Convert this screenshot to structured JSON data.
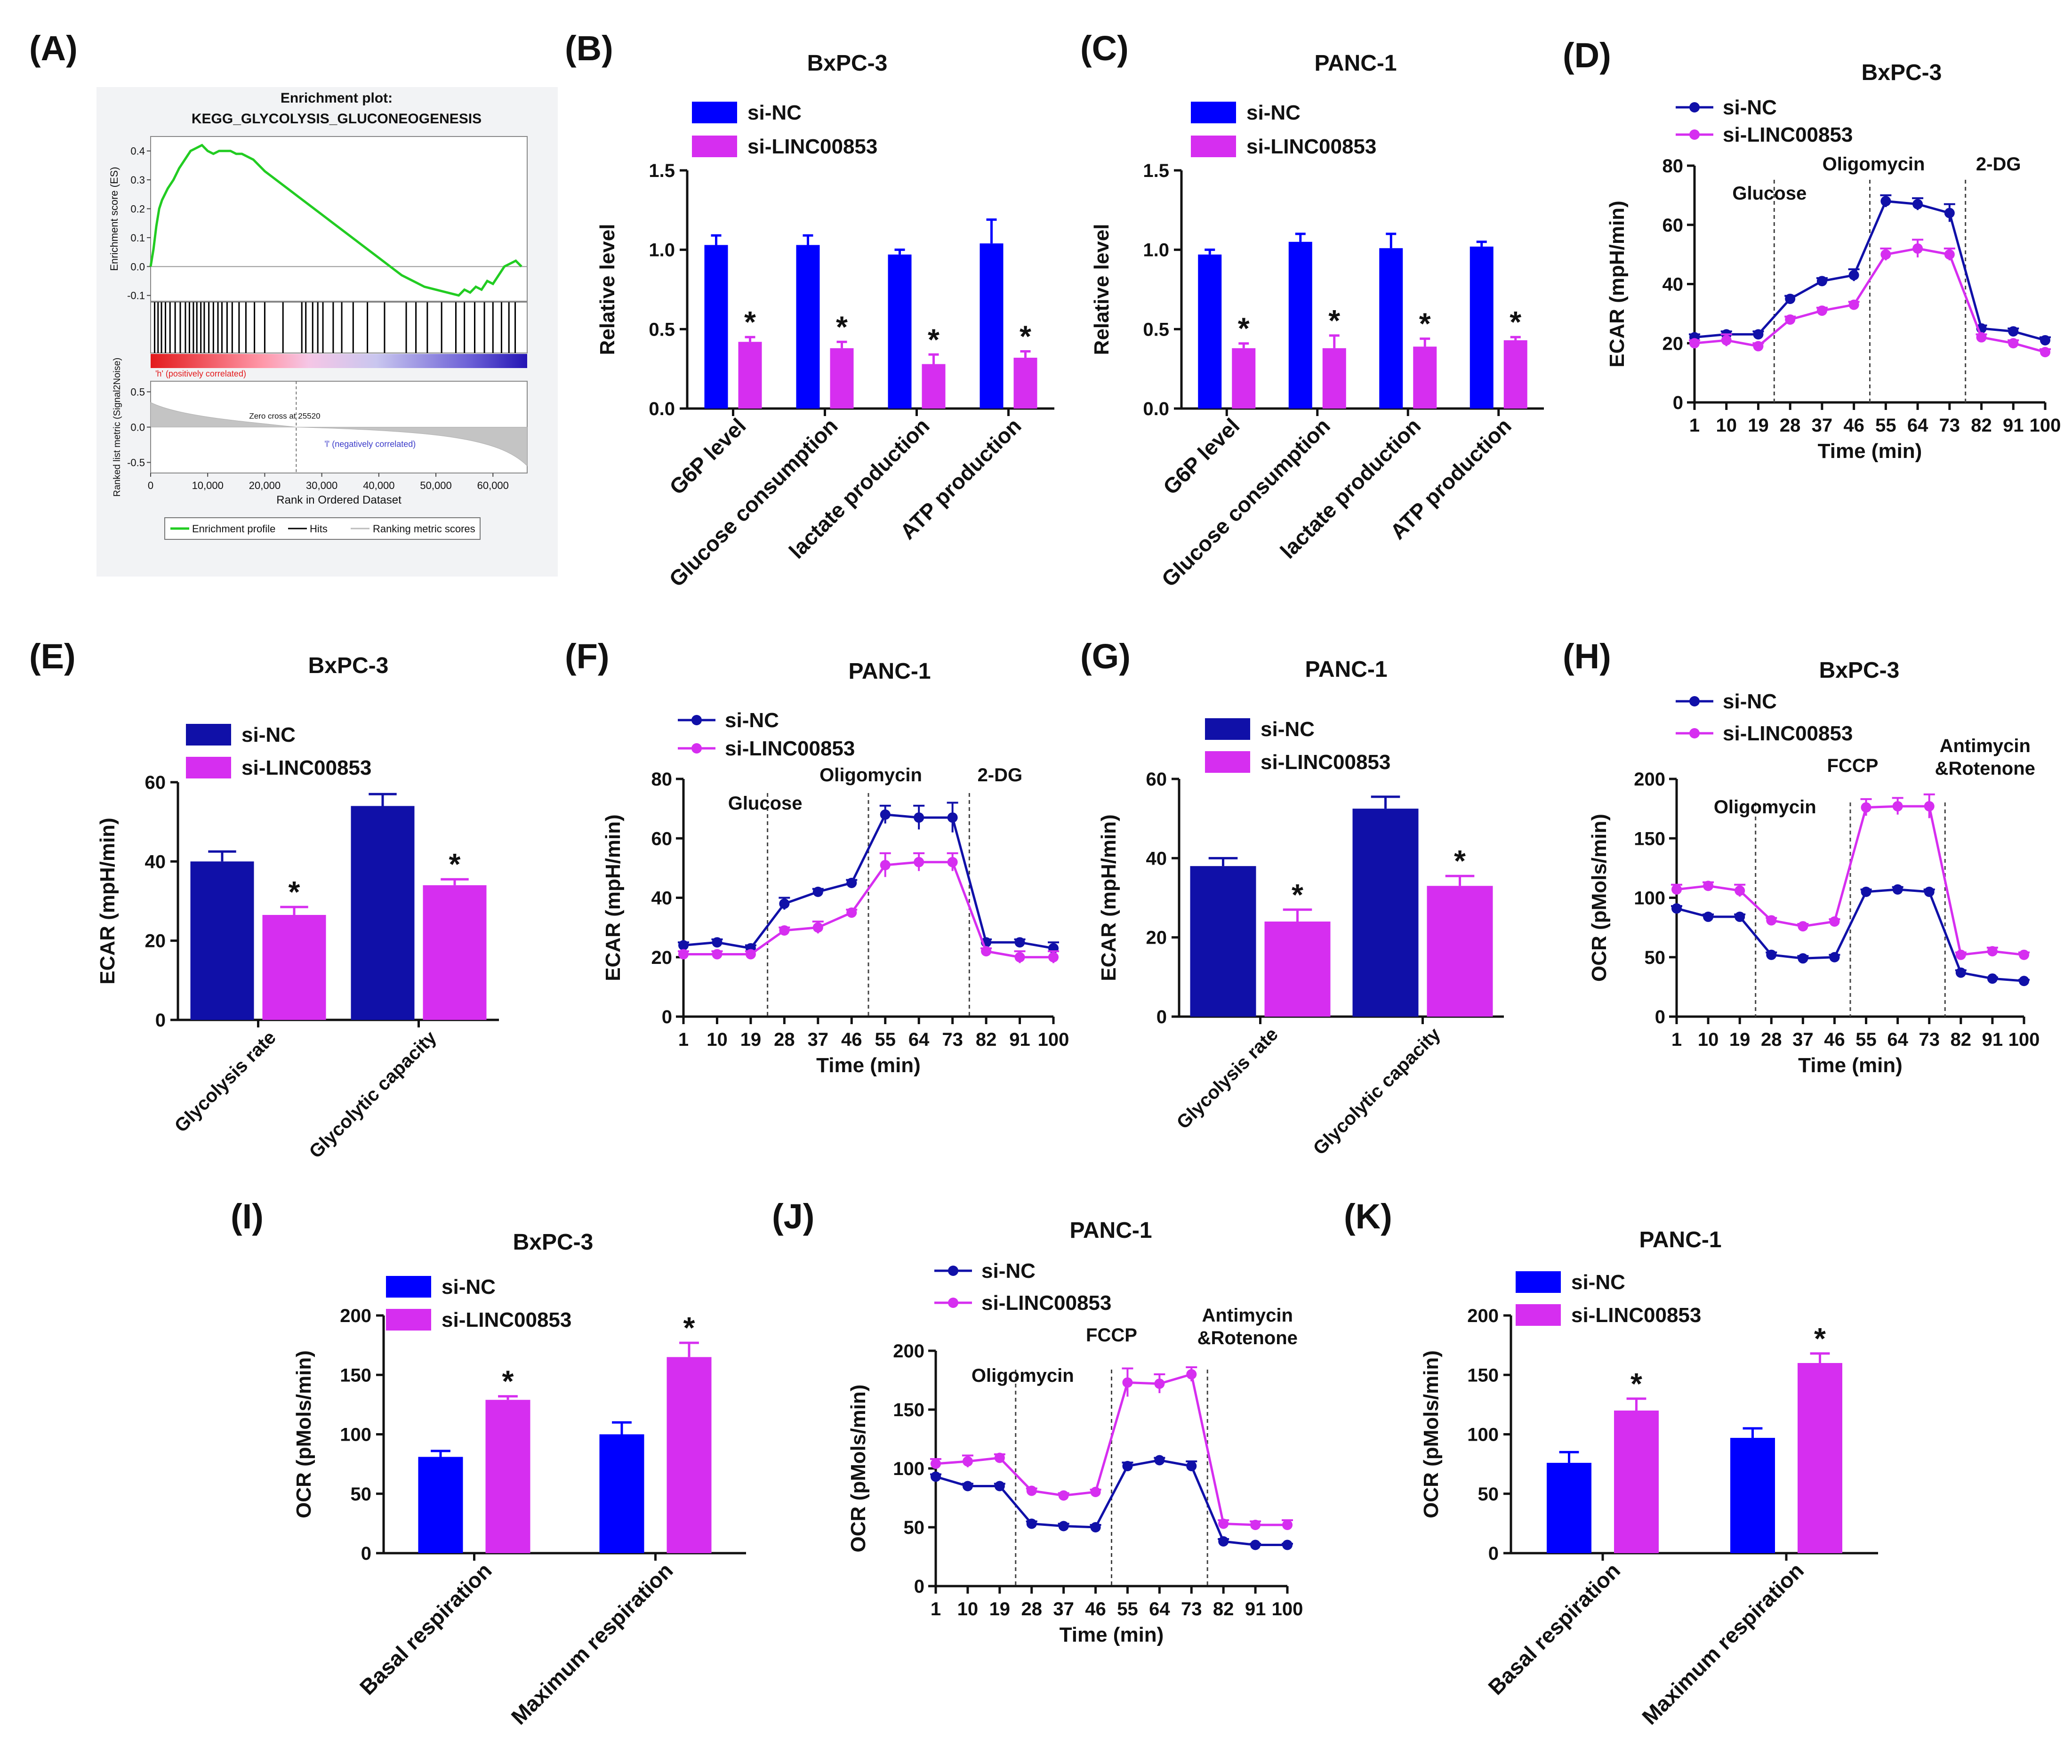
{
  "colors": {
    "si_nc": "#0000ff",
    "si_nc_dark": "#1010a8",
    "si_linc": "#d62ef0",
    "gsea_curve": "#22cc22",
    "gsea_panel_bg": "#f2f3f5",
    "axis": "#111111"
  },
  "chart_data": [
    {
      "panel": "A",
      "type": "line",
      "title": "Enrichment plot:",
      "subtitle": "KEGG_GLYCOLYSIS_GLUCONEOGENESIS",
      "ylabel": "Enrichment score (ES)",
      "ylabel2": "Ranked list metric (Signal2Noise)",
      "xlabel": "Rank in Ordered Dataset",
      "x_ticks": [
        "0",
        "10,000",
        "20,000",
        "30,000",
        "40,000",
        "50,000",
        "60,000"
      ],
      "y_ticks": [
        "0.4",
        "0.3",
        "0.2",
        "0.1",
        "0.0",
        "-0.1"
      ],
      "metric_ticks": [
        "0.5",
        "0.0",
        "-0.5"
      ],
      "xlim": [
        0,
        66000
      ],
      "ylim": [
        -0.12,
        0.45
      ],
      "metric_ylim": [
        -0.65,
        0.65
      ],
      "x": [
        0,
        500,
        1000,
        1500,
        2000,
        3000,
        4000,
        5000,
        6000,
        7000,
        8000,
        9000,
        10000,
        11000,
        12000,
        13000,
        14000,
        15000,
        16000,
        18000,
        20000,
        22000,
        24000,
        26000,
        28000,
        30000,
        32000,
        34000,
        36000,
        38000,
        40000,
        42000,
        44000,
        46000,
        48000,
        50000,
        52000,
        54000,
        55000,
        56000,
        57000,
        58000,
        59000,
        60000,
        61000,
        62000,
        63000,
        64000,
        65000
      ],
      "es": [
        0.0,
        0.06,
        0.14,
        0.2,
        0.23,
        0.27,
        0.3,
        0.34,
        0.37,
        0.4,
        0.41,
        0.42,
        0.4,
        0.39,
        0.4,
        0.4,
        0.4,
        0.39,
        0.39,
        0.37,
        0.33,
        0.3,
        0.27,
        0.24,
        0.21,
        0.18,
        0.15,
        0.12,
        0.09,
        0.06,
        0.03,
        0.0,
        -0.03,
        -0.05,
        -0.07,
        -0.08,
        -0.09,
        -0.1,
        -0.08,
        -0.09,
        -0.07,
        -0.08,
        -0.05,
        -0.06,
        -0.03,
        0.0,
        0.01,
        0.02,
        0.0
      ],
      "hits": [
        700,
        1300,
        1900,
        2600,
        3400,
        4300,
        5200,
        6100,
        6800,
        7500,
        8100,
        8800,
        9400,
        10200,
        11000,
        11800,
        12500,
        13400,
        14300,
        15500,
        16700,
        18200,
        20000,
        23200,
        26500,
        27200,
        28400,
        29300,
        30200,
        32000,
        33500,
        35500,
        38000,
        41000,
        44800,
        46500,
        48500,
        51000,
        53500,
        55000,
        56800,
        58500,
        60000,
        61500,
        62800,
        63900
      ],
      "zero_cross_rank": 25520,
      "pos_label": "'h' (positively correlated)",
      "neg_label": "'l' (negatively correlated)",
      "zero_cross_label": "Zero cross at 25520",
      "legend": [
        "Enrichment profile",
        "Hits",
        "Ranking metric scores"
      ]
    },
    {
      "panel": "B",
      "type": "bar",
      "title": "BxPC-3",
      "categories": [
        "G6P level",
        "Glucose consumption",
        "lactate production",
        "ATP production"
      ],
      "series": [
        {
          "name": "si-NC",
          "values": [
            1.03,
            1.03,
            0.97,
            1.04
          ],
          "errors": [
            0.06,
            0.06,
            0.03,
            0.15
          ]
        },
        {
          "name": "si-LINC00853",
          "values": [
            0.42,
            0.38,
            0.28,
            0.32
          ],
          "errors": [
            0.03,
            0.04,
            0.06,
            0.04
          ]
        }
      ],
      "significance": [
        "*",
        "*",
        "*",
        "*"
      ],
      "ylabel": "Relative level",
      "xlabel": "",
      "ylim": [
        0,
        1.5
      ],
      "y_ticks": [
        0.0,
        0.5,
        1.0,
        1.5
      ],
      "y_tick_labels": [
        "0.0",
        "0.5",
        "1.0",
        "1.5"
      ]
    },
    {
      "panel": "C",
      "type": "bar",
      "title": "PANC-1",
      "categories": [
        "G6P level",
        "Glucose consumption",
        "lactate production",
        "ATP production"
      ],
      "series": [
        {
          "name": "si-NC",
          "values": [
            0.97,
            1.05,
            1.01,
            1.02
          ],
          "errors": [
            0.03,
            0.05,
            0.09,
            0.03
          ]
        },
        {
          "name": "si-LINC00853",
          "values": [
            0.38,
            0.38,
            0.39,
            0.43
          ],
          "errors": [
            0.03,
            0.08,
            0.05,
            0.02
          ]
        }
      ],
      "significance": [
        "*",
        "*",
        "*",
        "*"
      ],
      "ylabel": "Relative level",
      "xlabel": "",
      "ylim": [
        0,
        1.5
      ],
      "y_ticks": [
        0.0,
        0.5,
        1.0,
        1.5
      ],
      "y_tick_labels": [
        "0.0",
        "0.5",
        "1.0",
        "1.5"
      ]
    },
    {
      "panel": "D",
      "type": "line",
      "title": "BxPC-3",
      "x": [
        1,
        10,
        19,
        28,
        37,
        46,
        55,
        64,
        73,
        82,
        91,
        100
      ],
      "x_tick_labels": [
        "1",
        "10",
        "19",
        "28",
        "37",
        "46",
        "55",
        "64",
        "73",
        "82",
        "91",
        "100"
      ],
      "series": [
        {
          "name": "si-NC",
          "values": [
            22,
            23,
            23,
            35,
            41,
            43,
            68,
            67,
            64,
            25,
            24,
            21
          ],
          "errors": [
            1,
            1,
            1,
            1,
            1,
            2,
            2,
            2,
            3,
            1,
            1,
            1
          ]
        },
        {
          "name": "si-LINC00853",
          "values": [
            20,
            21,
            19,
            28,
            31,
            33,
            50,
            52,
            50,
            22,
            20,
            17
          ],
          "errors": [
            1,
            2,
            1,
            1,
            1,
            1,
            2,
            3,
            2,
            1,
            1,
            1
          ]
        }
      ],
      "markers": [
        {
          "x": 23.5,
          "label": "Glucose"
        },
        {
          "x": 50.5,
          "label": "Oligomycin"
        },
        {
          "x": 77.5,
          "label": "2-DG"
        }
      ],
      "ylabel": "ECAR (mpH/min)",
      "xlabel": "Time (min)",
      "xlim": [
        1,
        100
      ],
      "ylim": [
        0,
        80
      ],
      "y_ticks": [
        0,
        20,
        40,
        60,
        80
      ]
    },
    {
      "panel": "E",
      "type": "bar",
      "title": "BxPC-3",
      "categories": [
        "Glycolysis rate",
        "Glycolytic capacity"
      ],
      "series": [
        {
          "name": "si-NC",
          "values": [
            40,
            54
          ],
          "errors": [
            2.5,
            3
          ]
        },
        {
          "name": "si-LINC00853",
          "values": [
            26.5,
            34
          ],
          "errors": [
            2,
            1.5
          ]
        }
      ],
      "significance": [
        "*",
        "*"
      ],
      "ylabel": "ECAR (mpH/min)",
      "xlabel": "",
      "ylim": [
        0,
        60
      ],
      "y_ticks": [
        0,
        20,
        40,
        60
      ],
      "y_tick_labels": [
        "0",
        "20",
        "40",
        "60"
      ]
    },
    {
      "panel": "F",
      "type": "line",
      "title": "PANC-1",
      "x": [
        1,
        10,
        19,
        28,
        37,
        46,
        55,
        64,
        73,
        82,
        91,
        100
      ],
      "x_tick_labels": [
        "1",
        "10",
        "19",
        "28",
        "37",
        "46",
        "55",
        "64",
        "73",
        "82",
        "91",
        "100"
      ],
      "series": [
        {
          "name": "si-NC",
          "values": [
            24,
            25,
            23,
            38,
            42,
            45,
            68,
            67,
            67,
            25,
            25,
            23
          ],
          "errors": [
            1,
            1,
            1,
            2,
            1,
            1,
            3,
            4,
            5,
            1,
            1,
            2
          ]
        },
        {
          "name": "si-LINC00853",
          "values": [
            21,
            21,
            21,
            29,
            30,
            35,
            51,
            52,
            52,
            22,
            20,
            20
          ],
          "errors": [
            1,
            1,
            1,
            1,
            2,
            1,
            4,
            3,
            3,
            1,
            2,
            2
          ]
        }
      ],
      "markers": [
        {
          "x": 23.5,
          "label": "Glucose"
        },
        {
          "x": 50.5,
          "label": "Oligomycin"
        },
        {
          "x": 77.5,
          "label": "2-DG"
        }
      ],
      "ylabel": "ECAR (mpH/min)",
      "xlabel": "Time (min)",
      "xlim": [
        1,
        100
      ],
      "ylim": [
        0,
        80
      ],
      "y_ticks": [
        0,
        20,
        40,
        60,
        80
      ]
    },
    {
      "panel": "G",
      "type": "bar",
      "title": "PANC-1",
      "categories": [
        "Glycolysis rate",
        "Glycolytic capacity"
      ],
      "series": [
        {
          "name": "si-NC",
          "values": [
            38,
            52.5
          ],
          "errors": [
            2,
            3
          ]
        },
        {
          "name": "si-LINC00853",
          "values": [
            24,
            33
          ],
          "errors": [
            3,
            2.5
          ]
        }
      ],
      "significance": [
        "*",
        "*"
      ],
      "ylabel": "ECAR (mpH/min)",
      "xlabel": "",
      "ylim": [
        0,
        60
      ],
      "y_ticks": [
        0,
        20,
        40,
        60
      ],
      "y_tick_labels": [
        "0",
        "20",
        "40",
        "60"
      ]
    },
    {
      "panel": "H",
      "type": "line",
      "title": "BxPC-3",
      "x": [
        1,
        10,
        19,
        28,
        37,
        46,
        55,
        64,
        73,
        82,
        91,
        100
      ],
      "x_tick_labels": [
        "1",
        "10",
        "19",
        "28",
        "37",
        "46",
        "55",
        "64",
        "73",
        "82",
        "91",
        "100"
      ],
      "series": [
        {
          "name": "si-NC",
          "values": [
            91,
            84,
            84,
            52,
            49,
            50,
            105,
            107,
            105,
            37,
            32,
            30
          ],
          "errors": [
            2,
            2,
            2,
            2,
            2,
            2,
            2,
            2,
            2,
            2,
            1,
            1
          ]
        },
        {
          "name": "si-LINC00853",
          "values": [
            107,
            110,
            106,
            81,
            76,
            80,
            176,
            177,
            177,
            52,
            55,
            52
          ],
          "errors": [
            4,
            3,
            5,
            2,
            2,
            2,
            7,
            7,
            10,
            2,
            3,
            2
          ]
        }
      ],
      "markers": [
        {
          "x": 23.5,
          "label": "Oligomycin"
        },
        {
          "x": 50.5,
          "label": "FCCP"
        },
        {
          "x": 77.5,
          "label": "Antimycin &Rotenone"
        }
      ],
      "ylabel": "OCR (pMols/min)",
      "xlabel": "Time (min)",
      "xlim": [
        1,
        100
      ],
      "ylim": [
        0,
        200
      ],
      "y_ticks": [
        0,
        50,
        100,
        150,
        200
      ]
    },
    {
      "panel": "I",
      "type": "bar",
      "title": "BxPC-3",
      "categories": [
        "Basal respiration",
        "Maximum respiration"
      ],
      "series": [
        {
          "name": "si-NC",
          "values": [
            81,
            100
          ],
          "errors": [
            5,
            10
          ]
        },
        {
          "name": "si-LINC00853",
          "values": [
            129,
            165
          ],
          "errors": [
            3,
            12
          ]
        }
      ],
      "significance": [
        "*",
        "*"
      ],
      "ylabel": "OCR (pMols/min)",
      "xlabel": "",
      "ylim": [
        0,
        200
      ],
      "y_ticks": [
        0,
        50,
        100,
        150,
        200
      ],
      "y_tick_labels": [
        "0",
        "50",
        "100",
        "150",
        "200"
      ]
    },
    {
      "panel": "J",
      "type": "line",
      "title": "PANC-1",
      "x": [
        1,
        10,
        19,
        28,
        37,
        46,
        55,
        64,
        73,
        82,
        91,
        100
      ],
      "x_tick_labels": [
        "1",
        "10",
        "19",
        "28",
        "37",
        "46",
        "55",
        "64",
        "73",
        "82",
        "91",
        "100"
      ],
      "series": [
        {
          "name": "si-NC",
          "values": [
            93,
            85,
            85,
            53,
            51,
            50,
            102,
            107,
            102,
            38,
            35,
            35
          ],
          "errors": [
            2,
            2,
            2,
            2,
            2,
            2,
            3,
            2,
            4,
            2,
            1,
            1
          ]
        },
        {
          "name": "si-LINC00853",
          "values": [
            104,
            106,
            109,
            81,
            77,
            80,
            173,
            172,
            180,
            53,
            52,
            52
          ],
          "errors": [
            4,
            5,
            3,
            2,
            2,
            2,
            12,
            8,
            6,
            3,
            3,
            4
          ]
        }
      ],
      "markers": [
        {
          "x": 23.5,
          "label": "Oligomycin"
        },
        {
          "x": 50.5,
          "label": "FCCP"
        },
        {
          "x": 77.5,
          "label": "Antimycin &Rotenone"
        }
      ],
      "ylabel": "OCR (pMols/min)",
      "xlabel": "Time (min)",
      "xlim": [
        1,
        100
      ],
      "ylim": [
        0,
        200
      ],
      "y_ticks": [
        0,
        50,
        100,
        150,
        200
      ]
    },
    {
      "panel": "K",
      "type": "bar",
      "title": "PANC-1",
      "categories": [
        "Basal respiration",
        "Maximum respiration"
      ],
      "series": [
        {
          "name": "si-NC",
          "values": [
            76,
            97
          ],
          "errors": [
            9,
            8
          ]
        },
        {
          "name": "si-LINC00853",
          "values": [
            120,
            160
          ],
          "errors": [
            10,
            8
          ]
        }
      ],
      "significance": [
        "*",
        "*"
      ],
      "ylabel": "OCR (pMols/min)",
      "xlabel": "",
      "ylim": [
        0,
        200
      ],
      "y_ticks": [
        0,
        50,
        100,
        150,
        200
      ],
      "y_tick_labels": [
        "0",
        "50",
        "100",
        "150",
        "200"
      ]
    }
  ]
}
